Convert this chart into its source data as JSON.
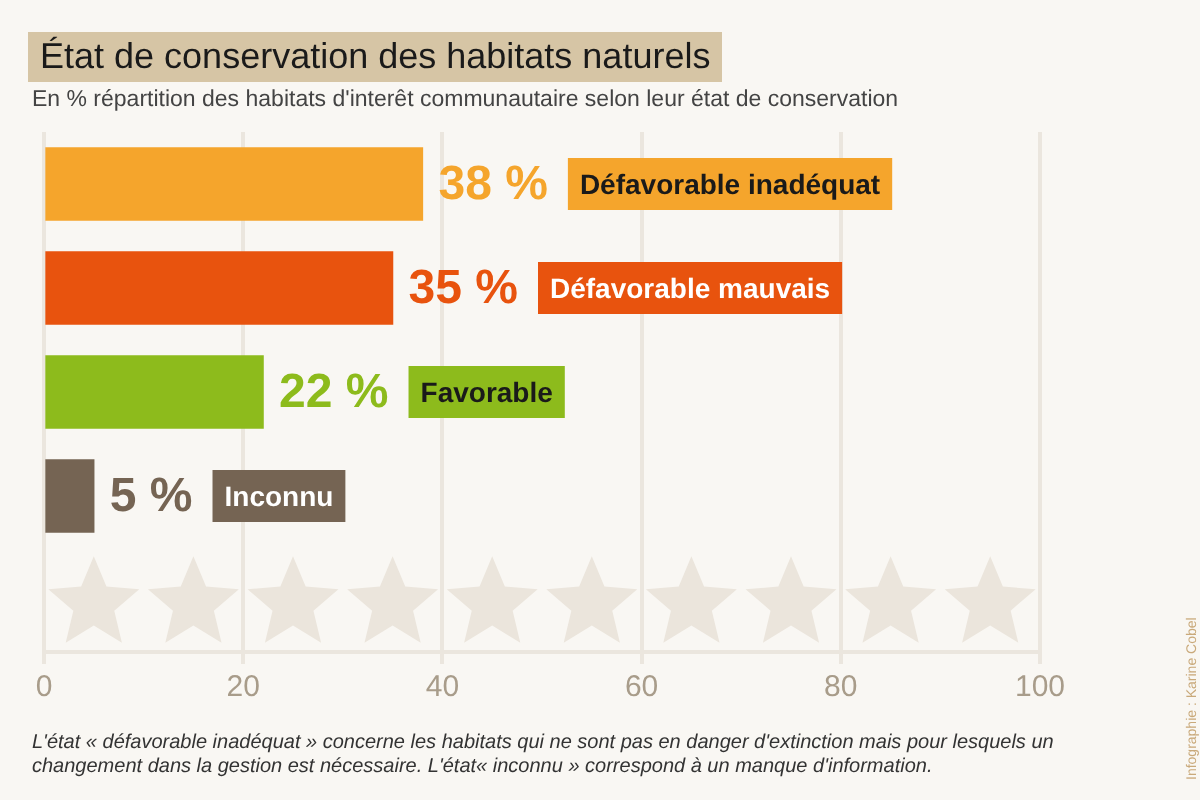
{
  "chart_data": {
    "type": "bar",
    "orientation": "horizontal",
    "title": "État de conservation des habitats naturels",
    "subtitle": "En % répartition des habitats d'interêt communautaire selon leur état de conservation",
    "categories": [
      "Défavorable inadéquat",
      "Défavorable mauvais",
      "Favorable",
      "Inconnu"
    ],
    "values": [
      38,
      35,
      22,
      5
    ],
    "value_labels": [
      "38 %",
      "35 %",
      "22 %",
      "5 %"
    ],
    "colors": [
      "#f5a52c",
      "#e8530e",
      "#8dbb1c",
      "#756453"
    ],
    "xlim": [
      0,
      100
    ],
    "xticks": [
      0,
      20,
      40,
      60,
      80,
      100
    ],
    "grid": "x",
    "legend": false,
    "tick_labels": "x",
    "annotations": [
      "L'état  « défavorable inadéquat » concerne les habitats qui ne sont pas en danger d'extinction mais pour lesquels un changement dans la gestion est nécessaire. L'état«  inconnu » correspond à un manque d'information.",
      "Infographie : Karine Cobel"
    ]
  }
}
